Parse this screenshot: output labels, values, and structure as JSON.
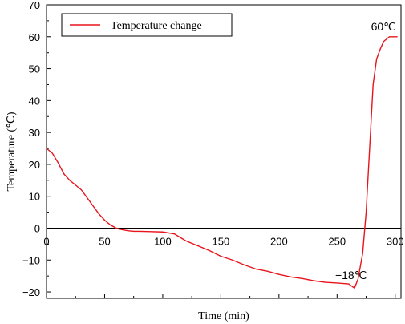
{
  "chart_data": {
    "type": "line",
    "xlabel": "Time (min)",
    "ylabel": "Temperature (℃)",
    "xlim": [
      0,
      305
    ],
    "ylim": [
      -22,
      70
    ],
    "x_ticks": [
      0,
      50,
      100,
      150,
      200,
      250,
      300
    ],
    "y_ticks": [
      -20,
      -10,
      0,
      10,
      20,
      30,
      40,
      50,
      60,
      70
    ],
    "grid": false,
    "legend": {
      "position": "top-left",
      "entries": [
        "Temperature change"
      ]
    },
    "series": [
      {
        "name": "Temperature change",
        "color": "#e8141c",
        "x": [
          0,
          5,
          10,
          15,
          20,
          25,
          30,
          35,
          40,
          45,
          50,
          55,
          60,
          65,
          70,
          75,
          80,
          90,
          100,
          110,
          120,
          130,
          140,
          150,
          160,
          170,
          180,
          190,
          200,
          210,
          220,
          230,
          240,
          250,
          260,
          265,
          268,
          272,
          275,
          278,
          281,
          284,
          287,
          290,
          295,
          300,
          302
        ],
        "y": [
          25,
          23.5,
          20.5,
          17,
          15,
          13.5,
          12,
          9.5,
          7,
          4.5,
          2.5,
          1,
          0,
          -0.5,
          -0.8,
          -1,
          -1,
          -1.1,
          -1.2,
          -1.8,
          -4,
          -5.5,
          -7,
          -8.8,
          -10,
          -11.5,
          -12.8,
          -13.5,
          -14.5,
          -15.3,
          -15.8,
          -16.5,
          -17,
          -17.2,
          -17.5,
          -18.8,
          -16,
          -8,
          5,
          25,
          45,
          53,
          56,
          58.5,
          60,
          60,
          60
        ]
      }
    ],
    "annotations": [
      {
        "text": "60℃",
        "x": 290,
        "y": 62
      },
      {
        "text": "−18℃",
        "x": 262,
        "y": -16
      }
    ]
  }
}
